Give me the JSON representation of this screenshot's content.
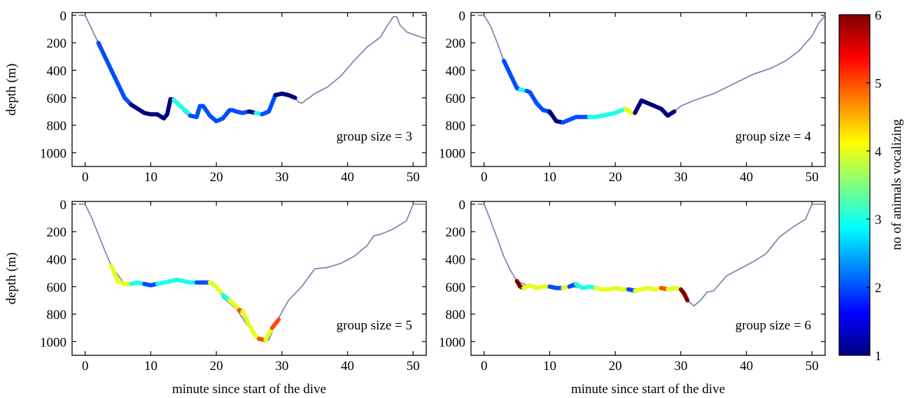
{
  "colorbar": {
    "label": "no of animals vocalizing",
    "min": 1,
    "max": 6,
    "ticks": [
      "1",
      "2",
      "3",
      "4",
      "5",
      "6"
    ],
    "colormap": "jet"
  },
  "chart_data": [
    {
      "type": "line",
      "panel": "top-left",
      "annotation": "group size = 3",
      "xlabel": "",
      "ylabel": "depth (m)",
      "xlim": [
        -2,
        52
      ],
      "ylim": [
        1100,
        -20
      ],
      "y_inverted": true,
      "xticks": [
        "0",
        "10",
        "20",
        "30",
        "40",
        "50"
      ],
      "yticks": [
        "0",
        "200",
        "400",
        "600",
        "800",
        "1000"
      ],
      "profile": {
        "x": [
          -1,
          0,
          1,
          2,
          4,
          6,
          8,
          10,
          12,
          12.5,
          13,
          14,
          15,
          16,
          17,
          17.5,
          18,
          19,
          20,
          21,
          22,
          23,
          24,
          25,
          26,
          27,
          28,
          29,
          30,
          31,
          32,
          32.5,
          33,
          35,
          37,
          39,
          41,
          43,
          45,
          46,
          47,
          47.5,
          48,
          49,
          50,
          52
        ],
        "y": [
          0,
          0,
          100,
          200,
          400,
          600,
          690,
          720,
          750,
          720,
          610,
          630,
          700,
          740,
          730,
          660,
          660,
          730,
          770,
          750,
          690,
          700,
          710,
          700,
          720,
          720,
          700,
          580,
          570,
          580,
          600,
          630,
          640,
          570,
          520,
          440,
          330,
          230,
          160,
          80,
          10,
          10,
          70,
          120,
          140,
          170
        ]
      },
      "vocal_segments": [
        {
          "x": [
            2,
            3,
            4,
            5,
            6,
            7
          ],
          "y": [
            200,
            300,
            400,
            500,
            600,
            650
          ],
          "n": 2
        },
        {
          "x": [
            7,
            8,
            9,
            10,
            11,
            12,
            12.5,
            13,
            13.5
          ],
          "y": [
            650,
            680,
            710,
            720,
            720,
            750,
            720,
            610,
            615
          ],
          "n": 1
        },
        {
          "x": [
            13.5,
            14.5,
            15.5,
            16
          ],
          "y": [
            615,
            660,
            700,
            730
          ],
          "n": 3
        },
        {
          "x": [
            16,
            17,
            17.5,
            18,
            19,
            20,
            21,
            22,
            22.5,
            23,
            24,
            25
          ],
          "y": [
            730,
            740,
            660,
            660,
            730,
            770,
            750,
            690,
            690,
            700,
            710,
            700
          ],
          "n": 2
        },
        {
          "x": [
            25,
            26
          ],
          "y": [
            700,
            710
          ],
          "n": 1
        },
        {
          "x": [
            26,
            27
          ],
          "y": [
            710,
            720
          ],
          "n": 3
        },
        {
          "x": [
            27,
            28,
            29
          ],
          "y": [
            720,
            700,
            580
          ],
          "n": 2
        },
        {
          "x": [
            29,
            30,
            31,
            32
          ],
          "y": [
            580,
            570,
            580,
            600
          ],
          "n": 1
        }
      ]
    },
    {
      "type": "line",
      "panel": "top-right",
      "annotation": "group size = 4",
      "xlabel": "",
      "ylabel": "",
      "xlim": [
        -2,
        52
      ],
      "ylim": [
        1100,
        -20
      ],
      "y_inverted": true,
      "xticks": [
        "0",
        "10",
        "20",
        "30",
        "40",
        "50"
      ],
      "yticks": [
        "0",
        "200",
        "400",
        "600",
        "800",
        "1000"
      ],
      "profile": {
        "x": [
          -1,
          0,
          1,
          2,
          3,
          5,
          7,
          9,
          11,
          12,
          14,
          16,
          18,
          20,
          22,
          23,
          24,
          25,
          26,
          27,
          28,
          29,
          30,
          32,
          35,
          38,
          41,
          44,
          46,
          48,
          50,
          51,
          52
        ],
        "y": [
          0,
          0,
          80,
          200,
          330,
          530,
          570,
          680,
          770,
          780,
          740,
          740,
          740,
          720,
          680,
          720,
          620,
          640,
          660,
          680,
          730,
          700,
          660,
          620,
          570,
          500,
          430,
          380,
          330,
          260,
          150,
          60,
          0
        ]
      },
      "vocal_segments": [
        {
          "x": [
            3,
            4,
            5,
            5.5
          ],
          "y": [
            330,
            430,
            530,
            540
          ],
          "n": 2
        },
        {
          "x": [
            5.5,
            6.5
          ],
          "y": [
            540,
            550
          ],
          "n": 3
        },
        {
          "x": [
            6.5,
            7,
            8,
            9,
            10
          ],
          "y": [
            550,
            560,
            640,
            690,
            700
          ],
          "n": 2
        },
        {
          "x": [
            10,
            11,
            12
          ],
          "y": [
            700,
            770,
            780
          ],
          "n": 1
        },
        {
          "x": [
            12,
            13,
            14,
            15,
            16
          ],
          "y": [
            780,
            760,
            740,
            740,
            740
          ],
          "n": 2
        },
        {
          "x": [
            16,
            17,
            18,
            19,
            20,
            21,
            21.5
          ],
          "y": [
            740,
            740,
            730,
            720,
            710,
            690,
            680
          ],
          "n": 3
        },
        {
          "x": [
            21.5,
            22.5,
            23
          ],
          "y": [
            680,
            710,
            710
          ],
          "n": 4
        },
        {
          "x": [
            23,
            24,
            25,
            26,
            27,
            28,
            29
          ],
          "y": [
            710,
            620,
            640,
            660,
            680,
            730,
            700
          ],
          "n": 1
        }
      ]
    },
    {
      "type": "line",
      "panel": "bottom-left",
      "annotation": "group size = 5",
      "xlabel": "minute since start of the dive",
      "ylabel": "depth (m)",
      "xlim": [
        -2,
        52
      ],
      "ylim": [
        1100,
        -20
      ],
      "y_inverted": true,
      "xticks": [
        "0",
        "10",
        "20",
        "30",
        "40",
        "50"
      ],
      "yticks": [
        "0",
        "200",
        "400",
        "600",
        "800",
        "1000"
      ],
      "profile": {
        "x": [
          -1,
          0,
          1,
          2,
          3,
          4,
          6,
          8,
          10,
          12,
          14,
          16,
          18,
          19.5,
          21,
          23,
          25,
          27,
          28,
          29,
          31,
          33,
          35,
          37,
          39,
          41,
          43,
          44,
          45,
          47,
          49,
          50,
          52
        ],
        "y": [
          0,
          0,
          100,
          220,
          340,
          450,
          580,
          570,
          590,
          570,
          550,
          570,
          570,
          570,
          680,
          760,
          900,
          990,
          990,
          870,
          700,
          600,
          470,
          460,
          430,
          380,
          300,
          230,
          220,
          180,
          120,
          0,
          0
        ]
      },
      "vocal_segments": [
        {
          "x": [
            4,
            5,
            6,
            7
          ],
          "y": [
            450,
            560,
            580,
            580
          ],
          "n": 4
        },
        {
          "x": [
            7,
            8,
            9
          ],
          "y": [
            580,
            570,
            580
          ],
          "n": 3
        },
        {
          "x": [
            9,
            10,
            11
          ],
          "y": [
            580,
            590,
            580
          ],
          "n": 2
        },
        {
          "x": [
            11,
            12,
            13,
            14,
            15,
            16,
            17
          ],
          "y": [
            580,
            570,
            560,
            550,
            560,
            570,
            570
          ],
          "n": 3
        },
        {
          "x": [
            17,
            18,
            19
          ],
          "y": [
            570,
            570,
            570
          ],
          "n": 2
        },
        {
          "x": [
            19,
            20,
            21
          ],
          "y": [
            570,
            600,
            660
          ],
          "n": 4
        },
        {
          "x": [
            21,
            22
          ],
          "y": [
            660,
            700
          ],
          "n": 3
        },
        {
          "x": [
            22,
            23,
            23.5
          ],
          "y": [
            700,
            740,
            770
          ],
          "n": 4
        },
        {
          "x": [
            23.5,
            24
          ],
          "y": [
            770,
            780
          ],
          "n": 5
        },
        {
          "x": [
            24,
            25,
            26,
            26.5
          ],
          "y": [
            780,
            880,
            960,
            980
          ],
          "n": 4
        },
        {
          "x": [
            26.5,
            27.5
          ],
          "y": [
            980,
            990
          ],
          "n": 5
        },
        {
          "x": [
            27.5,
            28.5
          ],
          "y": [
            990,
            900
          ],
          "n": 4
        },
        {
          "x": [
            28.5,
            29.5
          ],
          "y": [
            900,
            840
          ],
          "n": 5
        }
      ]
    },
    {
      "type": "line",
      "panel": "bottom-right",
      "annotation": "group size = 6",
      "xlabel": "minute since start of the dive",
      "ylabel": "",
      "xlim": [
        -2,
        52
      ],
      "ylim": [
        1100,
        -20
      ],
      "y_inverted": true,
      "xticks": [
        "0",
        "10",
        "20",
        "30",
        "40",
        "50"
      ],
      "yticks": [
        "0",
        "200",
        "400",
        "600",
        "800",
        "1000"
      ],
      "profile": {
        "x": [
          -1,
          0,
          1,
          2,
          3,
          4,
          5,
          7,
          10,
          13,
          16,
          19,
          22,
          25,
          28,
          30,
          31,
          32,
          33,
          34,
          35,
          37,
          39,
          41,
          43,
          44,
          45,
          47,
          49,
          50,
          52
        ],
        "y": [
          0,
          0,
          120,
          250,
          380,
          480,
          560,
          600,
          610,
          600,
          610,
          620,
          620,
          610,
          610,
          630,
          700,
          740,
          700,
          640,
          630,
          520,
          470,
          420,
          360,
          300,
          240,
          170,
          110,
          0,
          0
        ]
      },
      "vocal_segments": [
        {
          "x": [
            5,
            5.5,
            6
          ],
          "y": [
            560,
            600,
            610
          ],
          "n": 6
        },
        {
          "x": [
            6,
            7,
            8,
            9,
            10
          ],
          "y": [
            610,
            590,
            610,
            600,
            600
          ],
          "n": 4
        },
        {
          "x": [
            10,
            11,
            12
          ],
          "y": [
            600,
            610,
            610
          ],
          "n": 2
        },
        {
          "x": [
            12,
            13
          ],
          "y": [
            610,
            600
          ],
          "n": 4
        },
        {
          "x": [
            13,
            14
          ],
          "y": [
            600,
            580
          ],
          "n": 2
        },
        {
          "x": [
            14,
            15,
            16,
            17
          ],
          "y": [
            580,
            610,
            600,
            610
          ],
          "n": 3
        },
        {
          "x": [
            17,
            18,
            19,
            20,
            21,
            22
          ],
          "y": [
            610,
            620,
            620,
            610,
            620,
            620
          ],
          "n": 4
        },
        {
          "x": [
            22,
            23
          ],
          "y": [
            620,
            630
          ],
          "n": 2
        },
        {
          "x": [
            23,
            24,
            25,
            26,
            27
          ],
          "y": [
            630,
            620,
            610,
            620,
            610
          ],
          "n": 4
        },
        {
          "x": [
            27,
            28
          ],
          "y": [
            610,
            620
          ],
          "n": 5
        },
        {
          "x": [
            28,
            29,
            30
          ],
          "y": [
            620,
            610,
            620
          ],
          "n": 4
        },
        {
          "x": [
            30,
            30.5,
            31
          ],
          "y": [
            620,
            650,
            700
          ],
          "n": 6
        }
      ]
    }
  ]
}
